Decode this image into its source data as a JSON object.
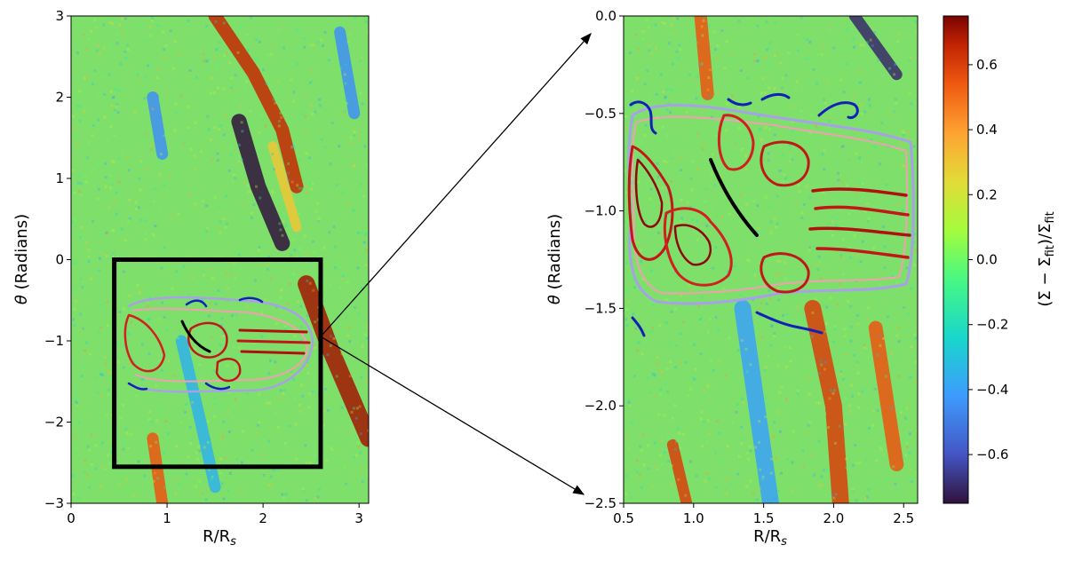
{
  "chart_data": [
    {
      "type": "heatmap",
      "panel": "full",
      "xlabel": "R/R_s",
      "ylabel": "θ (Radians)",
      "xlim": [
        0,
        3.1
      ],
      "ylim": [
        -3,
        3
      ],
      "xticks": [
        0,
        1,
        2,
        3
      ],
      "yticks": [
        -3,
        -2,
        -1,
        0,
        1,
        2,
        3
      ],
      "value_range": [
        -0.75,
        0.75
      ],
      "zoom_box": {
        "x": [
          0.45,
          2.6
        ],
        "y": [
          -2.55,
          0.0
        ]
      },
      "bands": [
        {
          "value": 0.65,
          "points": [
            [
              1.5,
              3.0
            ],
            [
              1.9,
              2.3
            ],
            [
              2.2,
              1.6
            ],
            [
              2.35,
              0.9
            ]
          ],
          "width": 0.14
        },
        {
          "value": 0.7,
          "points": [
            [
              2.45,
              -0.3
            ],
            [
              2.7,
              -1.1
            ],
            [
              3.1,
              -2.2
            ]
          ],
          "width": 0.18
        },
        {
          "value": 0.55,
          "points": [
            [
              0.85,
              -2.2
            ],
            [
              0.95,
              -3.0
            ]
          ],
          "width": 0.12
        },
        {
          "value": -0.75,
          "points": [
            [
              1.75,
              1.7
            ],
            [
              1.95,
              0.9
            ],
            [
              2.2,
              0.2
            ]
          ],
          "width": 0.16
        },
        {
          "value": -0.45,
          "points": [
            [
              0.85,
              2.0
            ],
            [
              0.95,
              1.3
            ]
          ],
          "width": 0.12
        },
        {
          "value": -0.35,
          "points": [
            [
              1.15,
              -1.0
            ],
            [
              1.35,
              -2.0
            ],
            [
              1.5,
              -2.8
            ]
          ],
          "width": 0.12
        },
        {
          "value": -0.45,
          "points": [
            [
              2.8,
              2.8
            ],
            [
              2.95,
              1.8
            ]
          ],
          "width": 0.12
        },
        {
          "value": 0.3,
          "points": [
            [
              2.1,
              1.4
            ],
            [
              2.35,
              0.4
            ]
          ],
          "width": 0.1
        }
      ]
    },
    {
      "type": "heatmap",
      "panel": "zoom",
      "xlabel": "R/R_s",
      "ylabel": "θ (Radians)",
      "xlim": [
        0.5,
        2.6
      ],
      "ylim": [
        -2.5,
        0.0
      ],
      "xticks": [
        0.5,
        1.0,
        1.5,
        2.0,
        2.5
      ],
      "yticks": [
        -2.5,
        -2.0,
        -1.5,
        -1.0,
        -0.5,
        0.0
      ],
      "value_range": [
        -0.75,
        0.75
      ],
      "bands": [
        {
          "value": 0.55,
          "points": [
            [
              1.05,
              0.0
            ],
            [
              1.1,
              -0.4
            ]
          ],
          "width": 0.09
        },
        {
          "value": -0.7,
          "points": [
            [
              2.15,
              0.0
            ],
            [
              2.45,
              -0.3
            ]
          ],
          "width": 0.08
        },
        {
          "value": -0.4,
          "points": [
            [
              1.35,
              -1.5
            ],
            [
              1.45,
              -2.0
            ],
            [
              1.55,
              -2.5
            ]
          ],
          "width": 0.12
        },
        {
          "value": 0.6,
          "points": [
            [
              1.85,
              -1.5
            ],
            [
              2.0,
              -2.0
            ],
            [
              2.05,
              -2.5
            ]
          ],
          "width": 0.12
        },
        {
          "value": 0.55,
          "points": [
            [
              2.3,
              -1.6
            ],
            [
              2.45,
              -2.3
            ]
          ],
          "width": 0.1
        },
        {
          "value": 0.6,
          "points": [
            [
              0.85,
              -2.2
            ],
            [
              0.95,
              -2.5
            ]
          ],
          "width": 0.08
        }
      ]
    }
  ],
  "colorbar": {
    "label": "(Σ − Σ_fit)/Σ_fit",
    "min": -0.75,
    "max": 0.75,
    "ticks": [
      0.6,
      0.4,
      0.2,
      0.0,
      -0.2,
      -0.4,
      -0.6
    ],
    "tick_labels": [
      "0.6",
      "0.4",
      "0.2",
      "0.0",
      "−0.2",
      "−0.4",
      "−0.6"
    ]
  },
  "colors": {
    "contour_dark_red": "#b01010",
    "contour_red": "#e03030",
    "contour_pink": "#f0a0b0",
    "contour_lavender": "#a8a0e8",
    "contour_blue": "#1020b8",
    "arc_black": "#000000"
  }
}
